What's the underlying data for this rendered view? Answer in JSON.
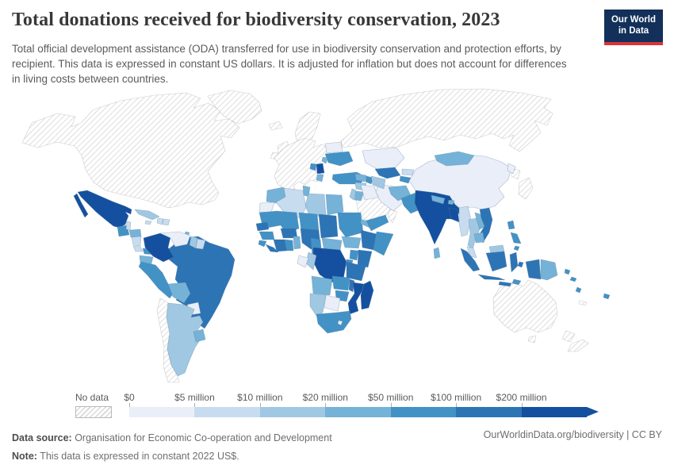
{
  "header": {
    "title": "Total donations received for biodiversity conservation, 2023",
    "subtitle": "Total official development assistance (ODA) transferred for use in biodiversity conservation and protection efforts, by recipient. This data is expressed in constant US dollars. It is adjusted for inflation but does not account for differences in living costs between countries.",
    "logo": {
      "line1": "Our World",
      "line2": "in Data",
      "bg": "#12305a",
      "accent": "#d7353a"
    }
  },
  "legend": {
    "no_data_label": "No data",
    "tick_labels": [
      "$0",
      "$5 million",
      "$10 million",
      "$20 million",
      "$50 million",
      "$100 million",
      "$200 million"
    ],
    "colors": [
      "#e9eef8",
      "#c8dcef",
      "#a0c8e2",
      "#75b2d7",
      "#4292c6",
      "#2d74b5",
      "#14509f"
    ],
    "no_data_border": "#b9b9b9"
  },
  "footer": {
    "data_source_label": "Data source:",
    "data_source": " Organisation for Economic Co-operation and Development",
    "note_label": "Note:",
    "note": " This data is expressed in constant 2022 US$.",
    "link": "OurWorldinData.org/biodiversity | CC BY"
  },
  "chart_data": {
    "type": "heatmap",
    "subtype": "choropleth world map",
    "title": "Total donations received for biodiversity conservation, 2023",
    "unit": "constant 2022 US$",
    "legend_position": "bottom",
    "bins": [
      "$0-$5 million",
      "$5-$10 million",
      "$10-$20 million",
      "$20-$50 million",
      "$50-$100 million",
      "$100-$200 million",
      "$200 million+"
    ],
    "no_data_bin": 0,
    "countries": [
      {
        "id": "north_america",
        "name": "United States & Canada",
        "bin": 0
      },
      {
        "id": "greenland",
        "name": "Greenland",
        "bin": 0
      },
      {
        "id": "iceland",
        "name": "Iceland",
        "bin": 0
      },
      {
        "id": "uk_ireland",
        "name": "United Kingdom & Ireland",
        "bin": 0
      },
      {
        "id": "scandinavia",
        "name": "Scandinavia",
        "bin": 0
      },
      {
        "id": "europe_west",
        "name": "Western & Central Europe",
        "bin": 0
      },
      {
        "id": "russia",
        "name": "Russia",
        "bin": 0
      },
      {
        "id": "japan",
        "name": "Japan",
        "bin": 0
      },
      {
        "id": "south_korea",
        "name": "South Korea",
        "bin": 0
      },
      {
        "id": "saudi_arabia",
        "name": "Saudi Arabia",
        "bin": 0
      },
      {
        "id": "oman",
        "name": "Oman",
        "bin": 0
      },
      {
        "id": "australia",
        "name": "Australia",
        "bin": 0
      },
      {
        "id": "tasmania",
        "name": "Tasmania",
        "bin": 0
      },
      {
        "id": "new_zealand",
        "name": "New Zealand",
        "bin": 0
      },
      {
        "id": "chile",
        "name": "Chile",
        "bin": 0
      },
      {
        "id": "french_guiana",
        "name": "French Guiana",
        "bin": 0
      },
      {
        "id": "new_caledonia",
        "name": "New Caledonia",
        "bin": 0
      },
      {
        "id": "mexico",
        "name": "Mexico",
        "bin": 7
      },
      {
        "id": "guatemala",
        "name": "Guatemala",
        "bin": 5
      },
      {
        "id": "belize",
        "name": "Belize",
        "bin": 2
      },
      {
        "id": "honduras",
        "name": "Honduras",
        "bin": 4
      },
      {
        "id": "nicaragua",
        "name": "Nicaragua",
        "bin": 2
      },
      {
        "id": "costa_rica",
        "name": "Costa Rica",
        "bin": 2
      },
      {
        "id": "panama",
        "name": "Panama",
        "bin": 5
      },
      {
        "id": "cuba",
        "name": "Cuba",
        "bin": 3
      },
      {
        "id": "jamaica",
        "name": "Jamaica",
        "bin": 2
      },
      {
        "id": "haiti",
        "name": "Haiti",
        "bin": 2
      },
      {
        "id": "dominican_republic",
        "name": "Dominican Republic",
        "bin": 2
      },
      {
        "id": "trinidad",
        "name": "Trinidad and Tobago",
        "bin": 4
      },
      {
        "id": "colombia",
        "name": "Colombia",
        "bin": 7
      },
      {
        "id": "venezuela",
        "name": "Venezuela",
        "bin": 1
      },
      {
        "id": "guyana",
        "name": "Guyana",
        "bin": 3
      },
      {
        "id": "suriname",
        "name": "Suriname",
        "bin": 2
      },
      {
        "id": "ecuador",
        "name": "Ecuador",
        "bin": 4
      },
      {
        "id": "peru",
        "name": "Peru",
        "bin": 5
      },
      {
        "id": "brazil",
        "name": "Brazil",
        "bin": 6
      },
      {
        "id": "bolivia",
        "name": "Bolivia",
        "bin": 4
      },
      {
        "id": "paraguay",
        "name": "Paraguay",
        "bin": 1
      },
      {
        "id": "uruguay",
        "name": "Uruguay",
        "bin": 4
      },
      {
        "id": "argentina",
        "name": "Argentina",
        "bin": 3
      },
      {
        "id": "morocco",
        "name": "Morocco",
        "bin": 4
      },
      {
        "id": "western_sahara",
        "name": "Western Sahara",
        "bin": 1
      },
      {
        "id": "algeria",
        "name": "Algeria",
        "bin": 2
      },
      {
        "id": "tunisia",
        "name": "Tunisia",
        "bin": 4
      },
      {
        "id": "libya",
        "name": "Libya",
        "bin": 3
      },
      {
        "id": "egypt",
        "name": "Egypt",
        "bin": 4
      },
      {
        "id": "mauritania",
        "name": "Mauritania",
        "bin": 5
      },
      {
        "id": "mali",
        "name": "Mali",
        "bin": 5
      },
      {
        "id": "niger",
        "name": "Niger",
        "bin": 5
      },
      {
        "id": "chad",
        "name": "Chad",
        "bin": 6
      },
      {
        "id": "sudan",
        "name": "Sudan",
        "bin": 5
      },
      {
        "id": "eritrea",
        "name": "Eritrea",
        "bin": 4
      },
      {
        "id": "senegal",
        "name": "Senegal",
        "bin": 6
      },
      {
        "id": "guinea",
        "name": "Guinea",
        "bin": 5
      },
      {
        "id": "sierra_leone",
        "name": "Sierra Leone",
        "bin": 5
      },
      {
        "id": "liberia",
        "name": "Liberia",
        "bin": 6
      },
      {
        "id": "ivory_coast",
        "name": "Cote d'Ivoire",
        "bin": 6
      },
      {
        "id": "ghana",
        "name": "Ghana",
        "bin": 5
      },
      {
        "id": "burkina_faso",
        "name": "Burkina Faso",
        "bin": 6
      },
      {
        "id": "togo_benin",
        "name": "Togo & Benin",
        "bin": 4
      },
      {
        "id": "nigeria",
        "name": "Nigeria",
        "bin": 6
      },
      {
        "id": "cameroon",
        "name": "Cameroon",
        "bin": 5
      },
      {
        "id": "central_african_republic",
        "name": "Central African Republic",
        "bin": 4
      },
      {
        "id": "south_sudan",
        "name": "South Sudan",
        "bin": 4
      },
      {
        "id": "ethiopia",
        "name": "Ethiopia",
        "bin": 6
      },
      {
        "id": "somalia",
        "name": "Somalia",
        "bin": 5
      },
      {
        "id": "kenya",
        "name": "Kenya",
        "bin": 6
      },
      {
        "id": "uganda",
        "name": "Uganda",
        "bin": 5
      },
      {
        "id": "rwanda_burundi",
        "name": "Rwanda & Burundi",
        "bin": 5
      },
      {
        "id": "tanzania",
        "name": "Tanzania",
        "bin": 6
      },
      {
        "id": "drc",
        "name": "Democratic Republic of Congo",
        "bin": 7
      },
      {
        "id": "congo",
        "name": "Congo",
        "bin": 3
      },
      {
        "id": "gabon",
        "name": "Gabon",
        "bin": 1
      },
      {
        "id": "angola",
        "name": "Angola",
        "bin": 4
      },
      {
        "id": "zambia",
        "name": "Zambia",
        "bin": 5
      },
      {
        "id": "malawi",
        "name": "Malawi",
        "bin": 6
      },
      {
        "id": "mozambique",
        "name": "Mozambique",
        "bin": 7
      },
      {
        "id": "zimbabwe",
        "name": "Zimbabwe",
        "bin": 5
      },
      {
        "id": "botswana",
        "name": "Botswana",
        "bin": 1
      },
      {
        "id": "namibia",
        "name": "Namibia",
        "bin": 3
      },
      {
        "id": "south_africa",
        "name": "South Africa",
        "bin": 5
      },
      {
        "id": "lesotho",
        "name": "Lesotho",
        "bin": 1
      },
      {
        "id": "madagascar",
        "name": "Madagascar",
        "bin": 7
      },
      {
        "id": "ukraine",
        "name": "Ukraine",
        "bin": 5
      },
      {
        "id": "belarus",
        "name": "Belarus",
        "bin": 1
      },
      {
        "id": "moldova",
        "name": "Moldova",
        "bin": 4
      },
      {
        "id": "serbia",
        "name": "Serbia",
        "bin": 7
      },
      {
        "id": "bosnia",
        "name": "Bosnia and Herzegovina",
        "bin": 5
      },
      {
        "id": "albania_mk",
        "name": "Albania & North Macedonia",
        "bin": 4
      },
      {
        "id": "turkey",
        "name": "Turkey",
        "bin": 5
      },
      {
        "id": "syria",
        "name": "Syria",
        "bin": 3
      },
      {
        "id": "lebanon_israel",
        "name": "Lebanon & Israel",
        "bin": 3
      },
      {
        "id": "jordan",
        "name": "Jordan",
        "bin": 4
      },
      {
        "id": "iraq",
        "name": "Iraq",
        "bin": 1
      },
      {
        "id": "iran",
        "name": "Iran",
        "bin": 1
      },
      {
        "id": "georgia_armenia",
        "name": "Georgia & Armenia",
        "bin": 4
      },
      {
        "id": "azerbaijan",
        "name": "Azerbaijan",
        "bin": 5
      },
      {
        "id": "yemen",
        "name": "Yemen",
        "bin": 5
      },
      {
        "id": "kazakhstan",
        "name": "Kazakhstan",
        "bin": 1
      },
      {
        "id": "uzbekistan",
        "name": "Uzbekistan",
        "bin": 6
      },
      {
        "id": "turkmenistan",
        "name": "Turkmenistan",
        "bin": 3
      },
      {
        "id": "kyrgyzstan",
        "name": "Kyrgyzstan",
        "bin": 2
      },
      {
        "id": "tajikistan",
        "name": "Tajikistan",
        "bin": 5
      },
      {
        "id": "afghanistan",
        "name": "Afghanistan",
        "bin": 4
      },
      {
        "id": "pakistan",
        "name": "Pakistan",
        "bin": 5
      },
      {
        "id": "india",
        "name": "India",
        "bin": 7
      },
      {
        "id": "nepal",
        "name": "Nepal",
        "bin": 4
      },
      {
        "id": "bhutan",
        "name": "Bhutan",
        "bin": 4
      },
      {
        "id": "bangladesh",
        "name": "Bangladesh",
        "bin": 7
      },
      {
        "id": "sri_lanka",
        "name": "Sri Lanka",
        "bin": 4
      },
      {
        "id": "myanmar",
        "name": "Myanmar",
        "bin": 2
      },
      {
        "id": "thailand",
        "name": "Thailand",
        "bin": 3
      },
      {
        "id": "laos",
        "name": "Laos",
        "bin": 4
      },
      {
        "id": "vietnam",
        "name": "Vietnam",
        "bin": 6
      },
      {
        "id": "cambodia",
        "name": "Cambodia",
        "bin": 4
      },
      {
        "id": "china",
        "name": "China",
        "bin": 1
      },
      {
        "id": "mongolia",
        "name": "Mongolia",
        "bin": 4
      },
      {
        "id": "north_korea",
        "name": "North Korea",
        "bin": 1
      },
      {
        "id": "philippines",
        "name": "Philippines",
        "bin": 5
      },
      {
        "id": "malaysia_peninsula",
        "name": "Malaysia (peninsula)",
        "bin": 2
      },
      {
        "id": "malaysia_borneo",
        "name": "Malaysia (Borneo)",
        "bin": 3
      },
      {
        "id": "indonesia",
        "name": "Indonesia",
        "bin": 6
      },
      {
        "id": "papua_indonesia",
        "name": "Indonesia (Papua)",
        "bin": 6
      },
      {
        "id": "png",
        "name": "Papua New Guinea",
        "bin": 4
      },
      {
        "id": "timor",
        "name": "Timor-Leste",
        "bin": 5
      },
      {
        "id": "solomon",
        "name": "Solomon Islands",
        "bin": 5
      },
      {
        "id": "vanuatu",
        "name": "Vanuatu",
        "bin": 5
      },
      {
        "id": "fiji",
        "name": "Fiji",
        "bin": 5
      }
    ]
  }
}
